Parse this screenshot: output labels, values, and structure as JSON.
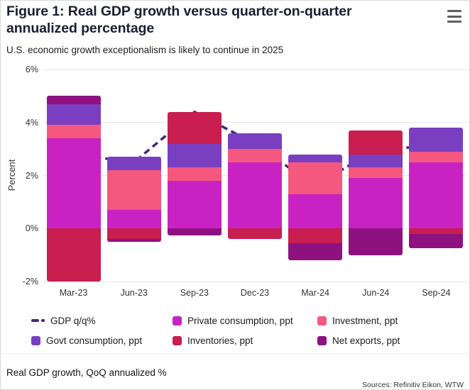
{
  "header": {
    "title": "Figure 1: Real GDP growth versus quarter-on-quarter annualized percentage",
    "subtitle": "U.S. economic growth exceptionalism is likely to continue in 2025"
  },
  "icons": {
    "menu": "hamburger-menu-icon"
  },
  "chart_data": {
    "type": "bar",
    "subtype": "stacked-bar-with-dashed-line",
    "categories": [
      "Mar-23",
      "Jun-23",
      "Sep-23",
      "Dec-23",
      "Mar-24",
      "Jun-24",
      "Sep-24"
    ],
    "bar_series": [
      {
        "name": "Private consumption, ppt",
        "color": "#c822c3",
        "values": [
          3.4,
          0.7,
          1.8,
          2.5,
          1.3,
          1.9,
          2.5
        ]
      },
      {
        "name": "Investment, ppt",
        "color": "#f4587e",
        "values": [
          0.5,
          1.5,
          0.5,
          0.5,
          1.2,
          0.4,
          0.4
        ]
      },
      {
        "name": "Govt consumption, ppt",
        "color": "#7a3fc0",
        "values": [
          0.8,
          0.5,
          0.9,
          0.6,
          0.3,
          0.5,
          0.9
        ]
      },
      {
        "name": "Inventories, ppt",
        "color": "#c81e50",
        "values": [
          -2.0,
          -0.4,
          1.2,
          -0.4,
          -0.55,
          0.9,
          -0.2
        ]
      },
      {
        "name": "Net exports, ppt",
        "color": "#8e1180",
        "values": [
          0.3,
          -0.1,
          -0.25,
          0,
          -0.65,
          -1.0,
          -0.55
        ]
      }
    ],
    "line_series": {
      "name": "GDP q/q%",
      "color": "#3d2878",
      "style": "dashed",
      "values": [
        2.8,
        2.5,
        4.4,
        3.2,
        1.6,
        3.0,
        3.1
      ]
    },
    "title": "Figure 1: Real GDP growth versus quarter-on-quarter annualized percentage",
    "xlabel": "",
    "ylabel": "Percent",
    "ylim": [
      -2,
      6
    ],
    "yticks": [
      "6%",
      "4%",
      "2%",
      "0%",
      "-2%"
    ],
    "ytick_values": [
      6,
      4,
      2,
      0,
      -2
    ],
    "grid": true,
    "legend_position": "bottom"
  },
  "footer": {
    "caption": "Real GDP growth, QoQ annualized %",
    "source": "Sources: Refinitiv Eikon, WTW"
  }
}
